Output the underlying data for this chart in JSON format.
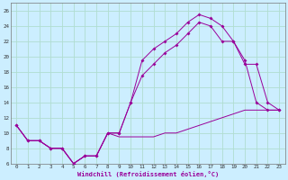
{
  "xlabel": "Windchill (Refroidissement éolien,°C)",
  "bg_color": "#cceeff",
  "grid_color": "#b0ddd0",
  "line_color": "#990099",
  "xlim": [
    -0.5,
    23.5
  ],
  "ylim": [
    6,
    27
  ],
  "xticks": [
    0,
    1,
    2,
    3,
    4,
    5,
    6,
    7,
    8,
    9,
    10,
    11,
    12,
    13,
    14,
    15,
    16,
    17,
    18,
    19,
    20,
    21,
    22,
    23
  ],
  "yticks": [
    6,
    8,
    10,
    12,
    14,
    16,
    18,
    20,
    22,
    24,
    26
  ],
  "series1_x": [
    0,
    1,
    2,
    3,
    4,
    5,
    6,
    7,
    8,
    9,
    10,
    11,
    12,
    13,
    14,
    15,
    16,
    17,
    18,
    19,
    20,
    21,
    22,
    23
  ],
  "series1_y": [
    11,
    9,
    9,
    8,
    8,
    6,
    7,
    7,
    10,
    10,
    14,
    19.5,
    21,
    22,
    23,
    24.5,
    25.5,
    25,
    24,
    22,
    19.5,
    14,
    13,
    13
  ],
  "series2_x": [
    0,
    1,
    2,
    3,
    4,
    5,
    6,
    7,
    8,
    9,
    10,
    11,
    12,
    13,
    14,
    15,
    16,
    17,
    18,
    19,
    20,
    21,
    22,
    23
  ],
  "series2_y": [
    11,
    9,
    9,
    8,
    8,
    6,
    7,
    7,
    10,
    9.5,
    9.5,
    9.5,
    9.5,
    10,
    10,
    10.5,
    11,
    11.5,
    12,
    12.5,
    13,
    13,
    13,
    13
  ],
  "series3_x": [
    0,
    1,
    2,
    3,
    4,
    5,
    6,
    7,
    8,
    9,
    10,
    11,
    12,
    13,
    14,
    15,
    16,
    17,
    18,
    19,
    20,
    21,
    22,
    23
  ],
  "series3_y": [
    11,
    9,
    9,
    8,
    8,
    6,
    7,
    7,
    10,
    10,
    14,
    17.5,
    19,
    20.5,
    21.5,
    23,
    24.5,
    24,
    22,
    22,
    19,
    19,
    14,
    13
  ]
}
